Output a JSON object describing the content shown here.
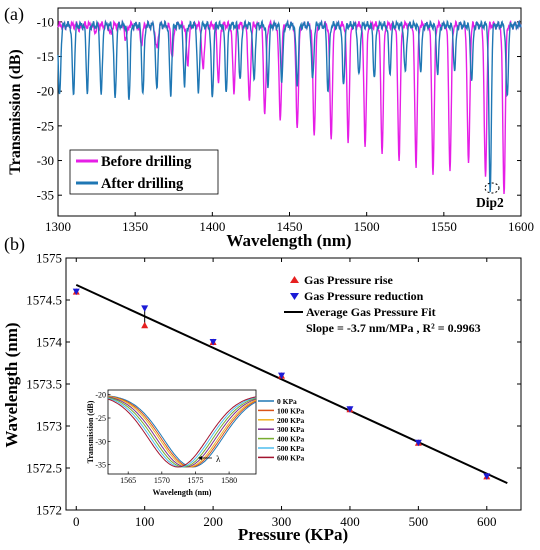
{
  "colors": {
    "before": "#e61ee6",
    "after": "#1f77b4",
    "rise": "#e62020",
    "reduction": "#1b1bd6",
    "fit": "#000000",
    "inset_series": [
      "#1f77b4",
      "#d95319",
      "#edb120",
      "#7e2f8e",
      "#77ac30",
      "#4dbeee",
      "#a2142f"
    ]
  },
  "chart_data": [
    {
      "type": "line",
      "panel_label": "(a)",
      "xlabel": "Wavelength (nm)",
      "ylabel": "Transmission (dB)",
      "xlim": [
        1300,
        1600
      ],
      "ylim": [
        -38,
        -8
      ],
      "xticks": [
        "1300",
        "1350",
        "1400",
        "1450",
        "1500",
        "1550",
        "1600"
      ],
      "yticks": [
        "-10",
        "-15",
        "-20",
        "-25",
        "-30",
        "-35"
      ],
      "annotation": "Dip2",
      "legend_position": "bottom-left",
      "series": [
        {
          "name": "Before drilling",
          "baseline": -10.5,
          "dips_x": [
            1304,
            1314,
            1324,
            1334,
            1344,
            1354,
            1364,
            1374,
            1384,
            1394,
            1404,
            1414,
            1424,
            1434,
            1444,
            1455,
            1466,
            1477,
            1488,
            1499,
            1510,
            1521,
            1532,
            1543,
            1554,
            1566,
            1577,
            1589
          ],
          "dips_y": [
            -10.7,
            -11,
            -11.3,
            -11.8,
            -12.5,
            -13.2,
            -14,
            -15,
            -16,
            -17,
            -18.5,
            -20,
            -21.5,
            -23,
            -24,
            -25,
            -26,
            -26.5,
            -27,
            -27.5,
            -28.5,
            -29.5,
            -30.5,
            -31.5,
            -31,
            -30.5,
            -32.5,
            -34.5
          ]
        },
        {
          "name": "After drilling",
          "baseline": -10.5,
          "dips_x": [
            1301,
            1310,
            1319,
            1328,
            1337,
            1346,
            1355,
            1364,
            1373,
            1382,
            1391,
            1400,
            1409,
            1418,
            1427,
            1436,
            1445,
            1455,
            1465,
            1475,
            1485,
            1495,
            1505,
            1515,
            1525,
            1535,
            1546,
            1557,
            1568,
            1580,
            1591
          ],
          "dips_y": [
            -21,
            -20.5,
            -20,
            -20.5,
            -21,
            -21,
            -20.5,
            -20,
            -20.5,
            -19,
            -20.5,
            -21,
            -20,
            -18.5,
            -18.5,
            -19,
            -18.5,
            -19,
            -18.5,
            -20,
            -19,
            -18,
            -18,
            -17.5,
            -17.5,
            -17,
            -17.5,
            -17,
            -18.5,
            -35,
            -21
          ]
        }
      ]
    },
    {
      "type": "scatter",
      "panel_label": "(b)",
      "xlabel": "Pressure (KPa)",
      "ylabel": "Wavelength (nm)",
      "xlim": [
        -15,
        650
      ],
      "ylim": [
        1572,
        1575
      ],
      "xticks": [
        "0",
        "100",
        "200",
        "300",
        "400",
        "500",
        "600"
      ],
      "yticks": [
        "1572",
        "1572.5",
        "1573",
        "1573.5",
        "1574",
        "1574.5",
        "1575"
      ],
      "legend_position": "top-right",
      "series": [
        {
          "name": "Gas Pressure rise",
          "x": [
            0,
            100,
            200,
            300,
            400,
            500,
            600
          ],
          "y": [
            1574.6,
            1574.2,
            1574.0,
            1573.6,
            1573.2,
            1572.8,
            1572.4
          ]
        },
        {
          "name": "Gas Pressure reduction",
          "x": [
            0,
            100,
            200,
            300,
            400,
            500,
            600
          ],
          "y": [
            1574.6,
            1574.4,
            1574.0,
            1573.6,
            1573.2,
            1572.8,
            1572.4
          ]
        },
        {
          "name": "Average Gas Pressure Fit",
          "x": [
            0,
            630
          ],
          "y": [
            1574.68,
            1572.32
          ]
        }
      ],
      "fit_annotation": "Slope = -3.7 nm/MPa , R² = 0.9963"
    },
    {
      "type": "line",
      "role": "inset",
      "xlabel": "Wavelength (nm)",
      "ylabel": "Transmission (dB)",
      "xlim": [
        1562,
        1584
      ],
      "ylim": [
        -37,
        -19
      ],
      "xticks": [
        "1565",
        "1570",
        "1575",
        "1580"
      ],
      "yticks": [
        "-20",
        "-25",
        "-30",
        "-35"
      ],
      "annotation": "λ",
      "legend_position": "right",
      "series": [
        {
          "name": "0 KPa",
          "dip_x": 1574.6
        },
        {
          "name": "100 KPa",
          "dip_x": 1574.3
        },
        {
          "name": "200 KPa",
          "dip_x": 1574.0
        },
        {
          "name": "300 KPa",
          "dip_x": 1573.6
        },
        {
          "name": "400 KPa",
          "dip_x": 1573.2
        },
        {
          "name": "500 KPa",
          "dip_x": 1572.8
        },
        {
          "name": "600 KPa",
          "dip_x": 1572.4
        }
      ]
    }
  ]
}
